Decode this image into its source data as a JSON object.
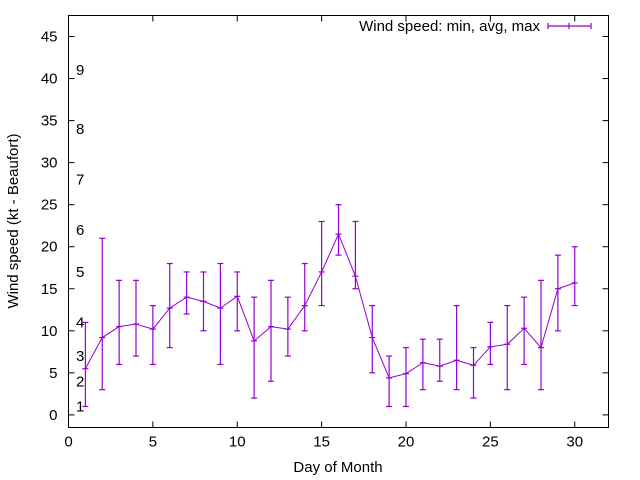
{
  "chart_data": {
    "type": "line",
    "title": "",
    "xlabel": "Day of Month",
    "ylabel": "Wind speed (kt - Beaufort)",
    "xlim": [
      0,
      32
    ],
    "ylim": [
      -1.5,
      47.5
    ],
    "xticks": [
      "0",
      "5",
      "10",
      "15",
      "20",
      "25",
      "30"
    ],
    "yticks": [
      "0",
      "5",
      "10",
      "15",
      "20",
      "25",
      "30",
      "35",
      "40",
      "45"
    ],
    "grid": false,
    "legend": {
      "placement": "top-right",
      "entries": [
        "Wind speed: min, avg, max"
      ]
    },
    "color": "#9400d3",
    "x": [
      1,
      2,
      3,
      4,
      5,
      6,
      7,
      8,
      9,
      10,
      11,
      12,
      13,
      14,
      15,
      16,
      17,
      18,
      19,
      20,
      21,
      22,
      23,
      24,
      25,
      26,
      27,
      28,
      29,
      30
    ],
    "min": [
      1,
      3,
      6,
      7,
      6,
      8,
      12,
      10,
      6,
      10,
      2,
      4,
      7,
      10,
      13,
      19,
      15,
      5,
      1,
      1,
      3,
      4,
      3,
      2,
      6,
      3,
      6,
      3,
      10,
      13
    ],
    "avg": [
      5.5,
      9.2,
      10.5,
      10.8,
      10.2,
      12.7,
      14.0,
      13.5,
      12.7,
      14.1,
      8.8,
      10.5,
      10.2,
      13.0,
      17.0,
      21.5,
      16.5,
      9.2,
      4.4,
      4.9,
      6.2,
      5.8,
      6.5,
      5.9,
      8.1,
      8.4,
      10.3,
      8.0,
      15.0,
      15.7
    ],
    "max": [
      11,
      21,
      16,
      16,
      13,
      18,
      17,
      17,
      18,
      17,
      14,
      16,
      14,
      18,
      23,
      25,
      23,
      13,
      7,
      8,
      9,
      9,
      13,
      8,
      11,
      13,
      14,
      16,
      19,
      20
    ],
    "annotations": [
      {
        "text": "1",
        "y": 1
      },
      {
        "text": "2",
        "y": 4
      },
      {
        "text": "3",
        "y": 7
      },
      {
        "text": "4",
        "y": 11
      },
      {
        "text": "5",
        "y": 17
      },
      {
        "text": "6",
        "y": 22
      },
      {
        "text": "7",
        "y": 28
      },
      {
        "text": "8",
        "y": 34
      },
      {
        "text": "9",
        "y": 41
      }
    ]
  }
}
